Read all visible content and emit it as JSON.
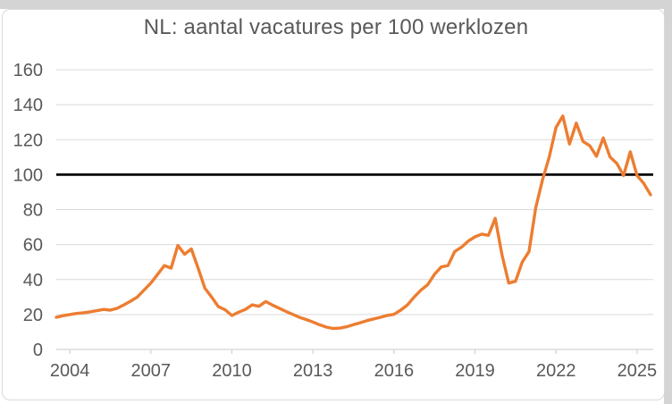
{
  "title": "NL: aantal vacatures per 100 werklozen",
  "colors": {
    "series_orange": "#ED7D31",
    "reference_black": "#000000",
    "text_gray": "#595959",
    "gridline_gray": "#D9D9D9",
    "axis_gray": "#C9C9C9",
    "surface_border": "#D9D9D9",
    "page_background_band": "#D4D4D4"
  },
  "chart_data": {
    "type": "line",
    "title": "NL: aantal vacatures per 100 werklozen",
    "xlabel": "",
    "ylabel": "",
    "x_axis": {
      "tick_labels": [
        "2004",
        "2007",
        "2010",
        "2013",
        "2016",
        "2019",
        "2022",
        "2025"
      ],
      "tick_interval_years": 3
    },
    "y_axis": {
      "tick_labels": [
        "0",
        "20",
        "40",
        "60",
        "80",
        "100",
        "120",
        "140",
        "160"
      ],
      "min": 0,
      "max": 160,
      "step": 20
    },
    "grid": "horizontal",
    "legend": "none",
    "reference_line": {
      "value": 100,
      "color": "#000000"
    },
    "series": [
      {
        "name": "vacatures per 100 werklozen",
        "color": "#ED7D31",
        "frequency": "quarterly",
        "start": "2003Q3",
        "end": "2025Q3",
        "values": [
          18.4,
          19.3,
          20.0,
          20.6,
          21.0,
          21.5,
          22.2,
          22.9,
          22.5,
          23.5,
          25.5,
          27.6,
          30.0,
          34.0,
          38.0,
          43.0,
          48.0,
          46.5,
          59.5,
          54.5,
          57.5,
          46.5,
          35.0,
          30.0,
          24.5,
          22.7,
          19.4,
          21.3,
          22.9,
          25.5,
          24.7,
          27.4,
          25.4,
          23.6,
          21.8,
          20.1,
          18.4,
          17.1,
          15.7,
          14.1,
          12.8,
          12.0,
          12.2,
          13.0,
          14.2,
          15.3,
          16.5,
          17.5,
          18.4,
          19.5,
          20.1,
          22.5,
          25.5,
          30.0,
          34.0,
          37.0,
          43.0,
          47.2,
          48.0,
          56.0,
          58.5,
          62.0,
          64.4,
          66.0,
          65.3,
          75.0,
          54.0,
          38.0,
          39.0,
          50.0,
          56.0,
          81.0,
          97.0,
          110.0,
          127.0,
          133.5,
          117.5,
          129.5,
          119.0,
          116.5,
          110.5,
          121.0,
          110.0,
          106.5,
          99.5,
          113.0,
          99.5,
          95.0,
          88.5
        ]
      }
    ]
  }
}
